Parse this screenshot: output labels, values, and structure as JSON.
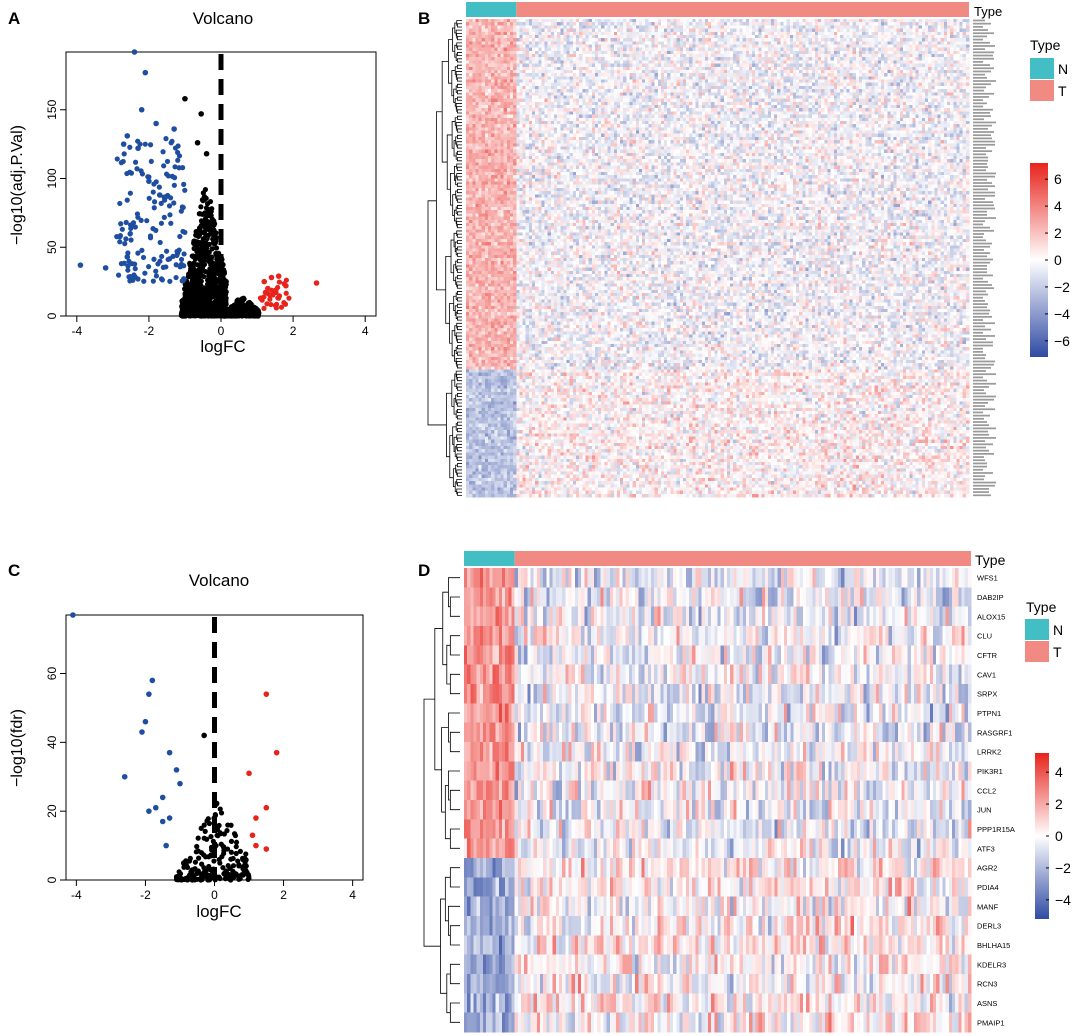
{
  "colors": {
    "up": "#e8231c",
    "down": "#1f4ea1",
    "ns": "#000000",
    "normal": "#43bec5",
    "tumor": "#f08a82",
    "heat_high": "#e8231c",
    "heat_mid": "#ffffff",
    "heat_low": "#2f4aa3"
  },
  "panels": {
    "a": "A",
    "b": "B",
    "c": "C",
    "d": "D"
  },
  "chart_data": [
    {
      "id": "A",
      "type": "scatter",
      "title": "Volcano",
      "xlabel": "logFC",
      "ylabel": "−log10(adj.P.Val)",
      "xlim": [
        -4.3,
        4.3
      ],
      "ylim": [
        0,
        192
      ],
      "xticks": [
        -4,
        -2,
        0,
        2,
        4
      ],
      "yticks": [
        0,
        50,
        100,
        150
      ],
      "cutoff_line_x": 0,
      "notable_points": {
        "down": [
          [
            -2.4,
            192
          ],
          [
            -2.1,
            177
          ],
          [
            -2.2,
            150
          ],
          [
            -1.8,
            140
          ],
          [
            -2.6,
            131
          ],
          [
            -1.3,
            136
          ],
          [
            -2.7,
            125
          ],
          [
            -2.3,
            122
          ],
          [
            -3.9,
            37
          ],
          [
            -3.2,
            35
          ],
          [
            -2.6,
            43
          ],
          [
            -2.0,
            98
          ],
          [
            -1.7,
            88
          ]
        ],
        "up": [
          [
            2.65,
            24
          ],
          [
            1.6,
            29
          ],
          [
            1.4,
            28
          ],
          [
            1.2,
            25
          ],
          [
            1.8,
            22
          ],
          [
            1.5,
            18
          ],
          [
            1.1,
            13
          ],
          [
            1.3,
            20
          ]
        ],
        "ns": [
          [
            -1.0,
            158
          ],
          [
            -0.55,
            147
          ],
          [
            -0.65,
            126
          ],
          [
            -0.4,
            118
          ]
        ]
      },
      "clouds": [
        {
          "group": "ns",
          "count": 820,
          "x": [
            -1.1,
            0.15
          ],
          "y": [
            0,
            100
          ],
          "seed": 11
        },
        {
          "group": "ns",
          "count": 300,
          "x": [
            0.05,
            1.05
          ],
          "y": [
            0,
            15
          ],
          "seed": 12
        },
        {
          "group": "down",
          "count": 150,
          "x": [
            -2.9,
            -1.0
          ],
          "y": [
            25,
            130
          ],
          "seed": 13
        },
        {
          "group": "up",
          "count": 30,
          "x": [
            1.0,
            1.95
          ],
          "y": [
            5,
            30
          ],
          "seed": 14
        }
      ]
    },
    {
      "id": "C",
      "type": "scatter",
      "title": "Volcano",
      "xlabel": "logFC",
      "ylabel": "−log10(fdr)",
      "xlim": [
        -4.3,
        4.3
      ],
      "ylim": [
        0,
        77
      ],
      "xticks": [
        -4,
        -2,
        0,
        2,
        4
      ],
      "yticks": [
        0,
        20,
        40,
        60
      ],
      "cutoff_line_x": 0,
      "points": {
        "down": [
          [
            -4.1,
            77
          ],
          [
            -1.8,
            58
          ],
          [
            -1.9,
            54
          ],
          [
            -2.0,
            46
          ],
          [
            -2.1,
            43
          ],
          [
            -1.3,
            37
          ],
          [
            -1.1,
            32
          ],
          [
            -2.6,
            30
          ],
          [
            -1.0,
            28
          ],
          [
            -1.5,
            24
          ],
          [
            -1.7,
            21
          ],
          [
            -1.9,
            20
          ],
          [
            -1.3,
            18
          ],
          [
            -1.5,
            17
          ],
          [
            -1.4,
            10
          ]
        ],
        "up": [
          [
            1.5,
            54
          ],
          [
            1.8,
            37
          ],
          [
            1.0,
            31
          ],
          [
            1.5,
            21
          ],
          [
            1.2,
            18
          ],
          [
            1.1,
            13
          ],
          [
            1.2,
            10
          ],
          [
            1.5,
            9
          ]
        ],
        "ns": [
          [
            -0.3,
            42
          ]
        ]
      },
      "clouds": [
        {
          "group": "ns",
          "count": 200,
          "x": [
            -1.1,
            1.0
          ],
          "y": [
            0,
            24
          ],
          "seed": 21
        }
      ]
    },
    {
      "id": "B",
      "type": "heatmap",
      "legend_title": "Type",
      "annotation_label": "Type",
      "groups": [
        {
          "name": "N",
          "cols": 0.1
        },
        {
          "name": "T",
          "cols": 0.9
        }
      ],
      "n_rows": 150,
      "n_cols": 160,
      "up_block_fraction": 0.73,
      "colorbar_ticks": [
        6,
        4,
        2,
        0,
        -2,
        -4,
        -6
      ],
      "colorbar_range": [
        -7.2,
        7.2
      ],
      "seed": 31
    },
    {
      "id": "D",
      "type": "heatmap",
      "legend_title": "Type",
      "annotation_label": "Type",
      "groups": [
        {
          "name": "N",
          "cols": 0.1
        },
        {
          "name": "T",
          "cols": 0.9
        }
      ],
      "genes": [
        "WFS1",
        "DAB2IP",
        "ALOX15",
        "CLU",
        "CFTR",
        "CAV1",
        "SRPX",
        "PTPN1",
        "RASGRF1",
        "LRRK2",
        "PIK3R1",
        "CCL2",
        "JUN",
        "PPP1R15A",
        "ATF3",
        "AGR2",
        "PDIA4",
        "MANF",
        "DERL3",
        "BHLHA15",
        "KDELR3",
        "RCN3",
        "ASNS",
        "PMAIP1"
      ],
      "up_in_normal": 15,
      "n_cols": 160,
      "colorbar_ticks": [
        4,
        2,
        0,
        -2,
        -4
      ],
      "colorbar_range": [
        -5.2,
        5.2
      ],
      "seed": 41
    }
  ]
}
